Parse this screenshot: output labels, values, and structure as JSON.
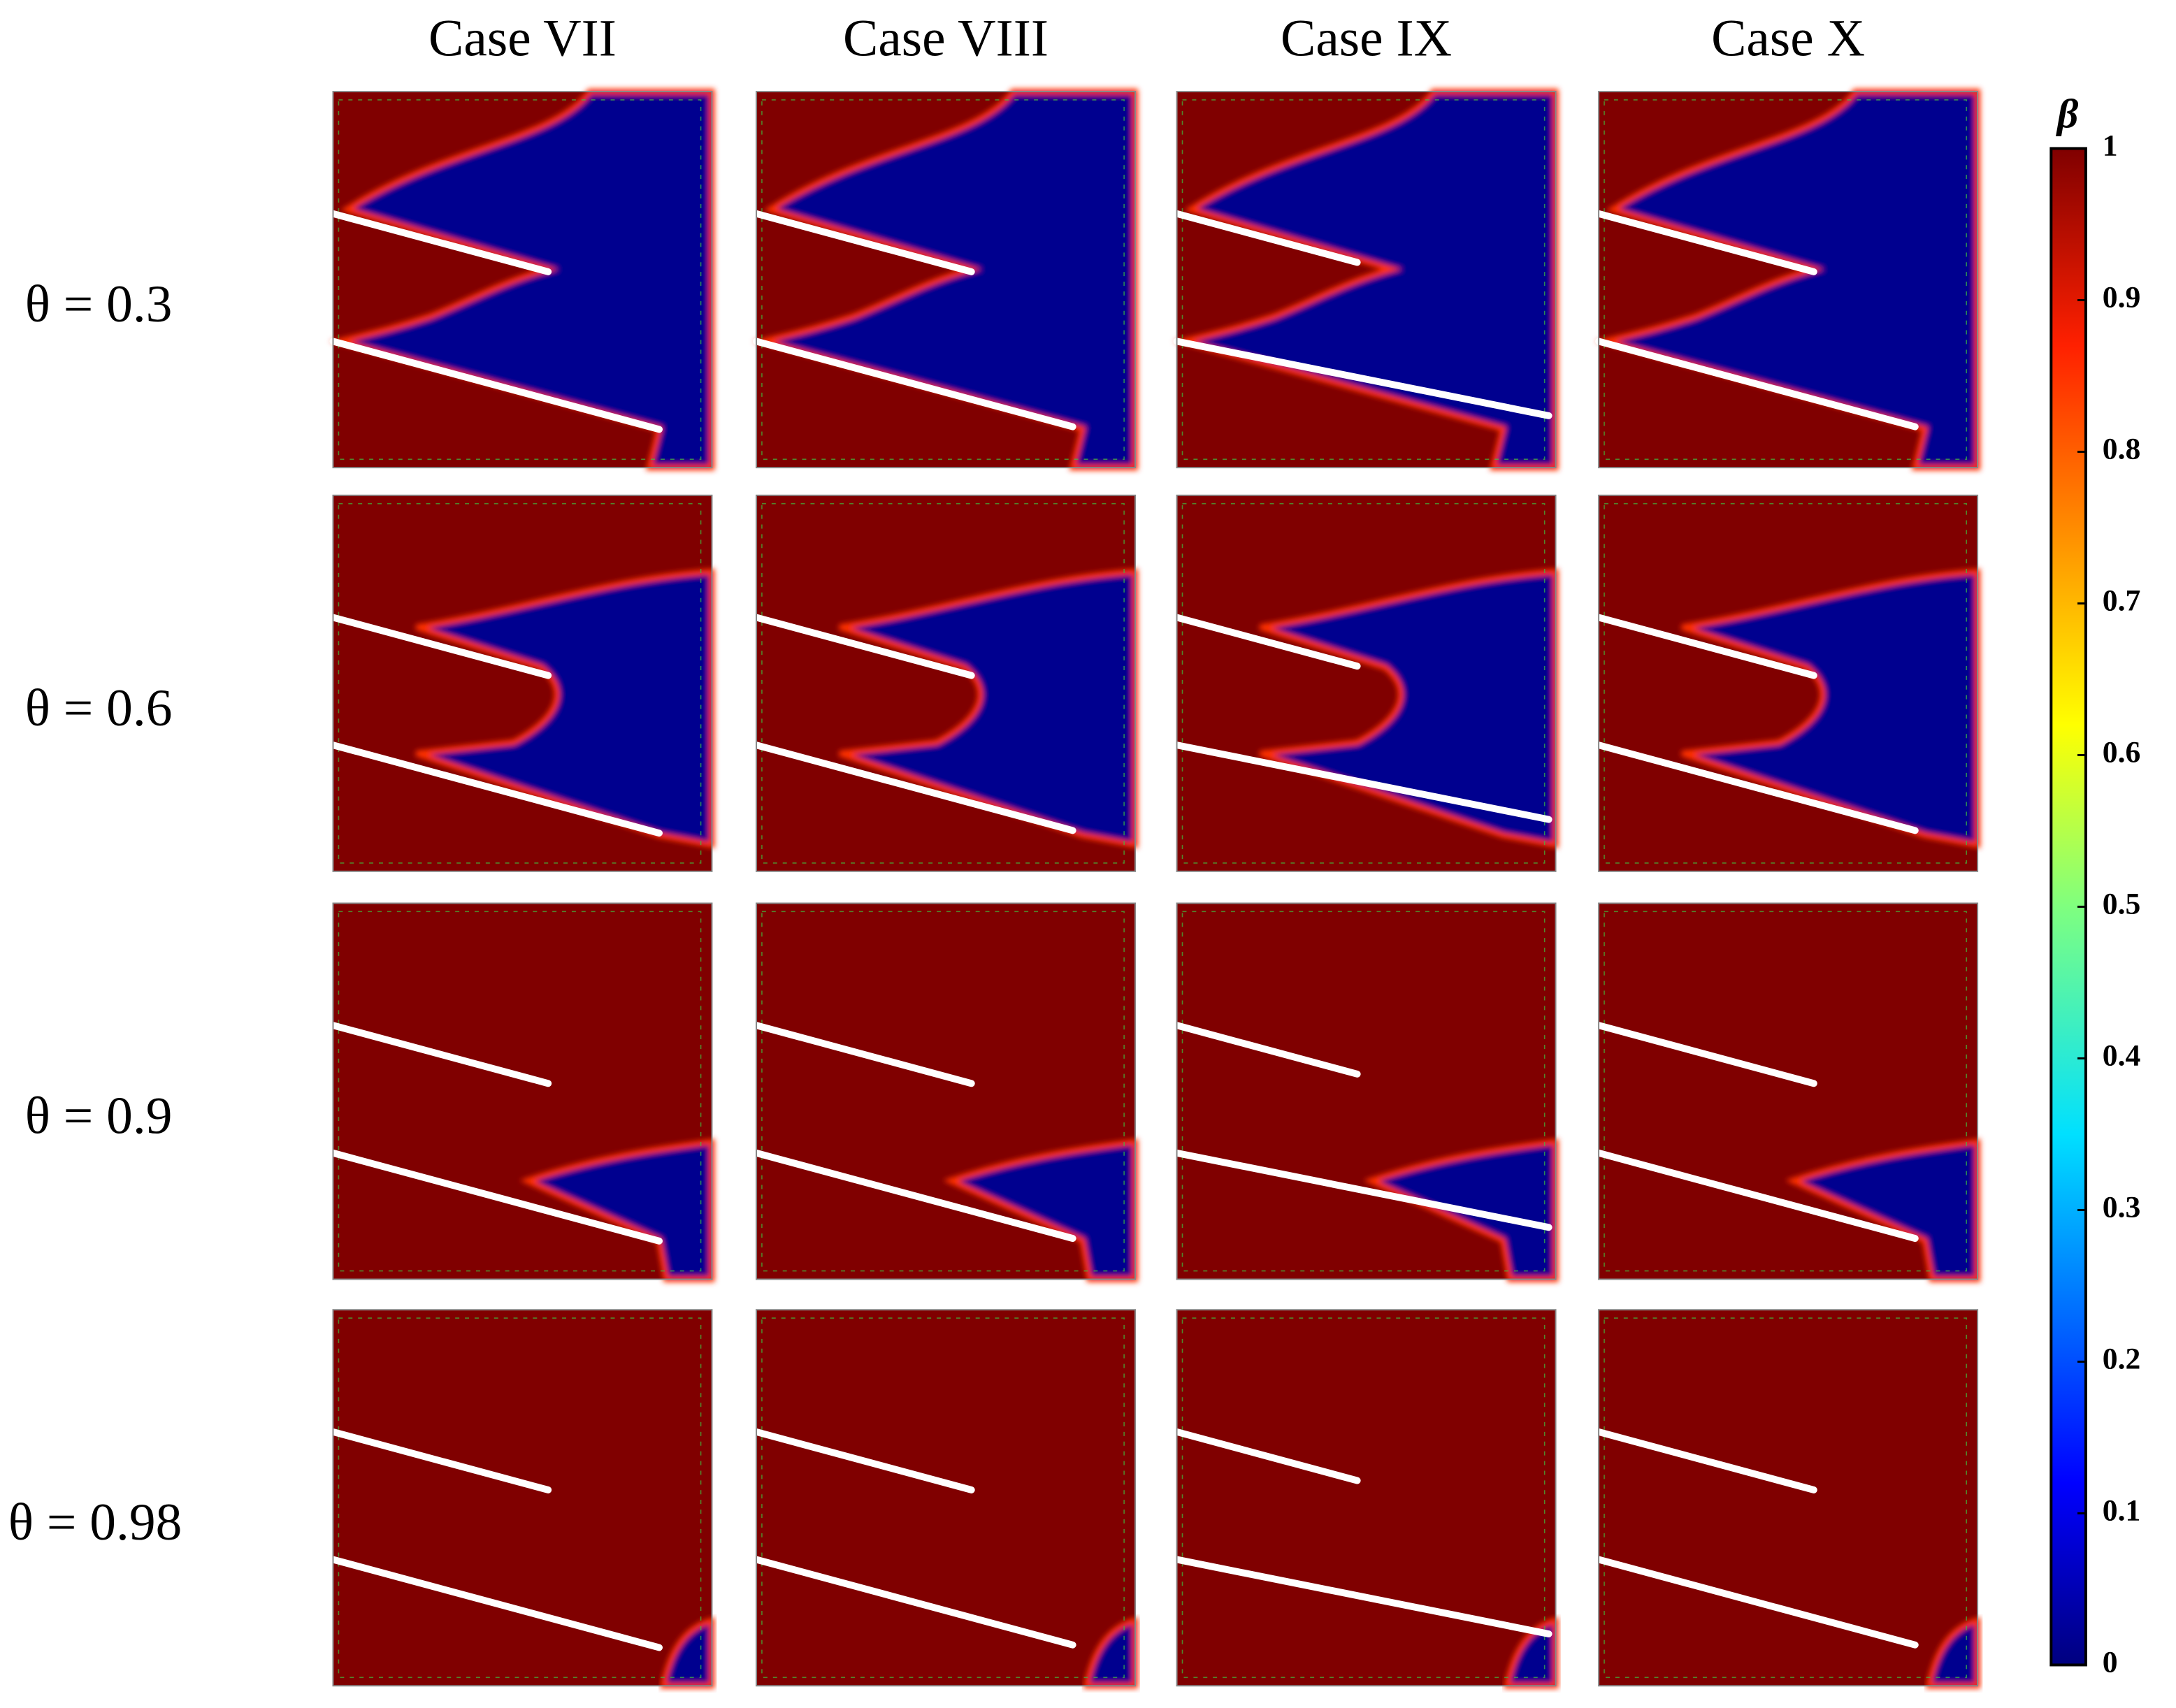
{
  "columns": [
    "Case VII",
    "Case VIII",
    "Case IX",
    "Case X"
  ],
  "rows": [
    "θ = 0.3",
    "θ = 0.6",
    "θ = 0.9",
    "θ = 0.98"
  ],
  "colorbar": {
    "label": "β",
    "lim": [
      0,
      1
    ],
    "ticks": [
      0,
      0.1,
      0.2,
      0.3,
      0.4,
      0.5,
      0.6,
      0.7,
      0.8,
      0.9,
      1
    ]
  }
}
